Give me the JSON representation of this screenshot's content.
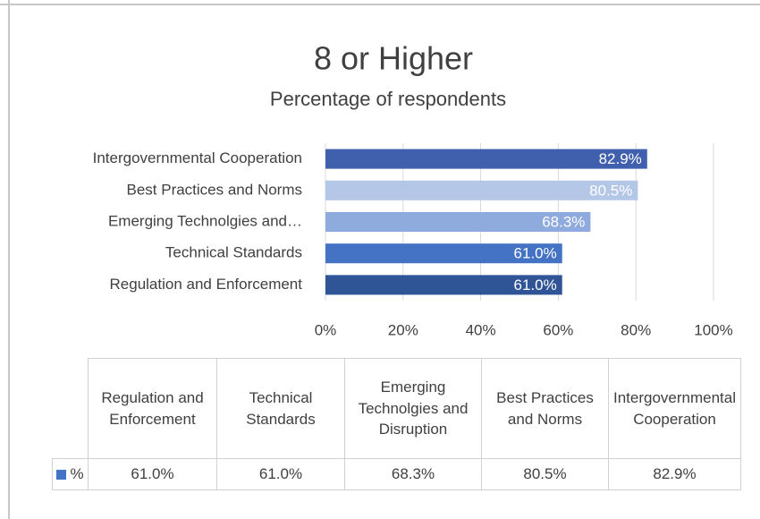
{
  "chart_data": {
    "type": "bar",
    "orientation": "horizontal",
    "title": "8 or Higher",
    "subtitle": "Percentage of respondents",
    "categories": [
      "Regulation and Enforcement",
      "Technical Standards",
      "Emerging Technolgies and Disruption",
      "Best Practices and Norms",
      "Intergovernmental Cooperation"
    ],
    "y_tick_labels": [
      "Regulation and Enforcement",
      "Technical Standards",
      "Emerging Technolgies and…",
      "Best Practices and Norms",
      "Intergovernmental Cooperation"
    ],
    "series": [
      {
        "name": "%",
        "color": "#4472c4",
        "bar_colors": [
          "#2f5597",
          "#4472c4",
          "#8faadc",
          "#b4c7e7",
          "#4060ad"
        ],
        "values": [
          61.0,
          61.0,
          68.3,
          80.5,
          82.9
        ],
        "value_labels": [
          "61.0%",
          "61.0%",
          "68.3%",
          "80.5%",
          "82.9%"
        ]
      }
    ],
    "xlim": [
      0,
      100
    ],
    "xticks": [
      {
        "value": 0,
        "label": "0%"
      },
      {
        "value": 20,
        "label": "20%"
      },
      {
        "value": 40,
        "label": "40%"
      },
      {
        "value": 60,
        "label": "60%"
      },
      {
        "value": 80,
        "label": "80%"
      },
      {
        "value": 100,
        "label": "100%"
      }
    ],
    "grid": true,
    "data_table": true
  }
}
